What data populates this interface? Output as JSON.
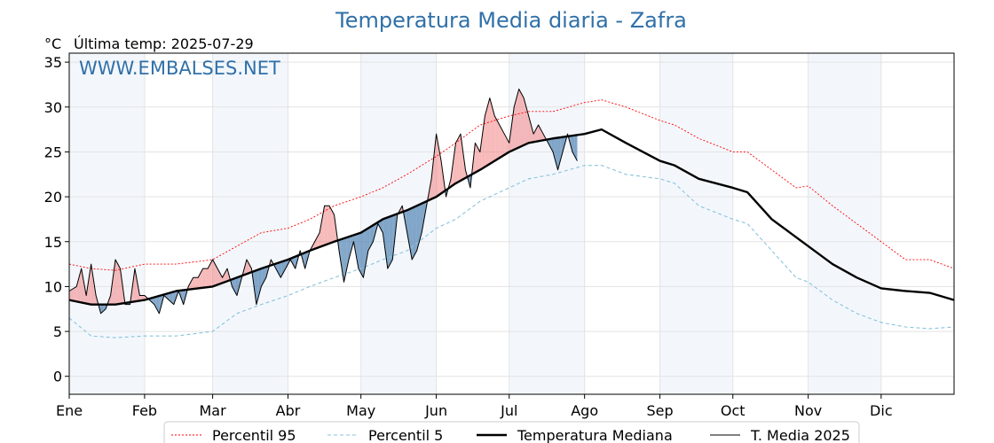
{
  "title": "Temperatura Media diaria - Zafra",
  "unit": "°C",
  "last_temp": "Última temp: 2025-07-29",
  "watermark": "WWW.EMBALSES.NET",
  "chart_data": {
    "type": "line",
    "x_axis": "day of year",
    "xlim": [
      1,
      365
    ],
    "ylim": [
      -2,
      36
    ],
    "y_ticks": [
      0,
      5,
      10,
      15,
      20,
      25,
      30,
      35
    ],
    "months": [
      {
        "label": "Ene",
        "start_day": 1
      },
      {
        "label": "Feb",
        "start_day": 32
      },
      {
        "label": "Mar",
        "start_day": 60
      },
      {
        "label": "Abr",
        "start_day": 91
      },
      {
        "label": "May",
        "start_day": 121
      },
      {
        "label": "Jun",
        "start_day": 152
      },
      {
        "label": "Jul",
        "start_day": 182
      },
      {
        "label": "Ago",
        "start_day": 213
      },
      {
        "label": "Sep",
        "start_day": 244
      },
      {
        "label": "Oct",
        "start_day": 274
      },
      {
        "label": "Nov",
        "start_day": 305
      },
      {
        "label": "Dic",
        "start_day": 335
      }
    ],
    "series": [
      {
        "name": "Percentil 95",
        "color": "#ff0000",
        "style": "dotted",
        "points": [
          [
            1,
            12.5
          ],
          [
            10,
            12
          ],
          [
            20,
            11.8
          ],
          [
            32,
            12.5
          ],
          [
            45,
            12.5
          ],
          [
            60,
            13
          ],
          [
            70,
            14.5
          ],
          [
            80,
            16
          ],
          [
            91,
            16.5
          ],
          [
            100,
            17.5
          ],
          [
            110,
            19
          ],
          [
            121,
            20
          ],
          [
            130,
            21
          ],
          [
            140,
            22.5
          ],
          [
            152,
            24.5
          ],
          [
            160,
            26
          ],
          [
            170,
            28
          ],
          [
            182,
            29
          ],
          [
            190,
            29.5
          ],
          [
            200,
            29.5
          ],
          [
            213,
            30.5
          ],
          [
            220,
            30.8
          ],
          [
            230,
            30
          ],
          [
            244,
            28.5
          ],
          [
            250,
            28
          ],
          [
            260,
            26.5
          ],
          [
            274,
            25
          ],
          [
            280,
            25
          ],
          [
            290,
            23
          ],
          [
            300,
            21
          ],
          [
            305,
            21.2
          ],
          [
            315,
            19
          ],
          [
            325,
            17
          ],
          [
            335,
            15
          ],
          [
            345,
            13
          ],
          [
            355,
            13
          ],
          [
            365,
            12
          ]
        ]
      },
      {
        "name": "Percentil 5",
        "color": "#89c3dc",
        "style": "dashed",
        "points": [
          [
            1,
            6.5
          ],
          [
            10,
            4.5
          ],
          [
            20,
            4.3
          ],
          [
            32,
            4.5
          ],
          [
            45,
            4.5
          ],
          [
            60,
            5
          ],
          [
            70,
            7
          ],
          [
            80,
            8
          ],
          [
            91,
            9
          ],
          [
            100,
            10
          ],
          [
            110,
            11
          ],
          [
            121,
            12
          ],
          [
            130,
            13
          ],
          [
            140,
            14
          ],
          [
            152,
            16.5
          ],
          [
            160,
            17.5
          ],
          [
            170,
            19.5
          ],
          [
            182,
            21
          ],
          [
            190,
            22
          ],
          [
            200,
            22.5
          ],
          [
            213,
            23.5
          ],
          [
            220,
            23.5
          ],
          [
            230,
            22.5
          ],
          [
            244,
            22
          ],
          [
            250,
            21.5
          ],
          [
            260,
            19
          ],
          [
            274,
            17.5
          ],
          [
            280,
            17
          ],
          [
            290,
            14
          ],
          [
            300,
            11
          ],
          [
            305,
            10.5
          ],
          [
            315,
            8.5
          ],
          [
            325,
            7
          ],
          [
            335,
            6
          ],
          [
            345,
            5.5
          ],
          [
            355,
            5.3
          ],
          [
            365,
            5.5
          ]
        ]
      },
      {
        "name": "Temperatura Mediana",
        "color": "#000000",
        "style": "thick",
        "points": [
          [
            1,
            8.5
          ],
          [
            10,
            8
          ],
          [
            20,
            8
          ],
          [
            32,
            8.5
          ],
          [
            45,
            9.5
          ],
          [
            60,
            10
          ],
          [
            70,
            11
          ],
          [
            80,
            12
          ],
          [
            91,
            13
          ],
          [
            100,
            14
          ],
          [
            110,
            15
          ],
          [
            121,
            16
          ],
          [
            130,
            17.5
          ],
          [
            140,
            18.5
          ],
          [
            152,
            20
          ],
          [
            160,
            21.5
          ],
          [
            170,
            23
          ],
          [
            182,
            25
          ],
          [
            190,
            26
          ],
          [
            200,
            26.5
          ],
          [
            213,
            27
          ],
          [
            220,
            27.5
          ],
          [
            230,
            26
          ],
          [
            244,
            24
          ],
          [
            250,
            23.5
          ],
          [
            260,
            22
          ],
          [
            274,
            21
          ],
          [
            280,
            20.5
          ],
          [
            290,
            17.5
          ],
          [
            300,
            15.5
          ],
          [
            305,
            14.5
          ],
          [
            315,
            12.5
          ],
          [
            325,
            11
          ],
          [
            335,
            9.8
          ],
          [
            345,
            9.5
          ],
          [
            355,
            9.3
          ],
          [
            365,
            8.5
          ]
        ]
      },
      {
        "name": "T. Media 2025",
        "color": "#000000",
        "style": "thin",
        "points": [
          [
            1,
            9.5
          ],
          [
            4,
            10
          ],
          [
            6,
            12
          ],
          [
            8,
            9
          ],
          [
            10,
            12.5
          ],
          [
            12,
            9
          ],
          [
            14,
            7
          ],
          [
            16,
            7.5
          ],
          [
            18,
            9
          ],
          [
            20,
            13
          ],
          [
            22,
            12
          ],
          [
            24,
            8
          ],
          [
            26,
            8
          ],
          [
            28,
            12
          ],
          [
            30,
            9
          ],
          [
            32,
            9
          ],
          [
            34,
            8.5
          ],
          [
            36,
            8
          ],
          [
            38,
            7
          ],
          [
            40,
            9
          ],
          [
            42,
            8.5
          ],
          [
            44,
            8
          ],
          [
            46,
            9.5
          ],
          [
            48,
            8
          ],
          [
            50,
            10
          ],
          [
            52,
            11
          ],
          [
            54,
            11
          ],
          [
            56,
            12
          ],
          [
            58,
            12
          ],
          [
            60,
            13
          ],
          [
            62,
            12
          ],
          [
            64,
            11
          ],
          [
            66,
            12
          ],
          [
            68,
            10
          ],
          [
            70,
            9
          ],
          [
            72,
            11
          ],
          [
            74,
            13
          ],
          [
            76,
            12
          ],
          [
            78,
            8
          ],
          [
            80,
            10
          ],
          [
            82,
            11
          ],
          [
            84,
            13
          ],
          [
            86,
            12
          ],
          [
            88,
            11
          ],
          [
            90,
            12
          ],
          [
            92,
            13
          ],
          [
            94,
            12
          ],
          [
            96,
            14
          ],
          [
            98,
            12
          ],
          [
            100,
            14
          ],
          [
            102,
            15
          ],
          [
            104,
            16
          ],
          [
            106,
            19
          ],
          [
            108,
            19
          ],
          [
            110,
            18
          ],
          [
            112,
            14
          ],
          [
            114,
            10.5
          ],
          [
            116,
            13
          ],
          [
            118,
            15
          ],
          [
            120,
            12
          ],
          [
            122,
            11
          ],
          [
            124,
            14
          ],
          [
            126,
            15
          ],
          [
            128,
            17
          ],
          [
            130,
            16
          ],
          [
            132,
            12
          ],
          [
            134,
            13
          ],
          [
            136,
            18
          ],
          [
            138,
            19
          ],
          [
            140,
            16
          ],
          [
            142,
            13
          ],
          [
            144,
            14
          ],
          [
            146,
            16
          ],
          [
            148,
            19
          ],
          [
            150,
            22
          ],
          [
            152,
            27
          ],
          [
            154,
            24
          ],
          [
            156,
            20
          ],
          [
            158,
            22
          ],
          [
            160,
            26
          ],
          [
            162,
            27
          ],
          [
            164,
            23
          ],
          [
            166,
            21
          ],
          [
            168,
            26
          ],
          [
            170,
            25
          ],
          [
            172,
            29
          ],
          [
            174,
            31
          ],
          [
            176,
            29
          ],
          [
            178,
            28
          ],
          [
            180,
            27
          ],
          [
            182,
            26
          ],
          [
            184,
            30
          ],
          [
            186,
            32
          ],
          [
            188,
            31
          ],
          [
            190,
            29
          ],
          [
            192,
            27
          ],
          [
            194,
            28
          ],
          [
            196,
            27
          ],
          [
            198,
            26
          ],
          [
            200,
            25
          ],
          [
            202,
            23
          ],
          [
            204,
            25
          ],
          [
            206,
            27
          ],
          [
            208,
            25
          ],
          [
            210,
            24
          ]
        ]
      }
    ],
    "legend": {
      "placement": "bottom",
      "entries": [
        "Percentil 95",
        "Percentil 5",
        "Temperatura Mediana",
        "T. Media 2025"
      ]
    },
    "fill_above_color": "#f08080",
    "fill_below_color": "#4a7fb0",
    "grid": true
  }
}
